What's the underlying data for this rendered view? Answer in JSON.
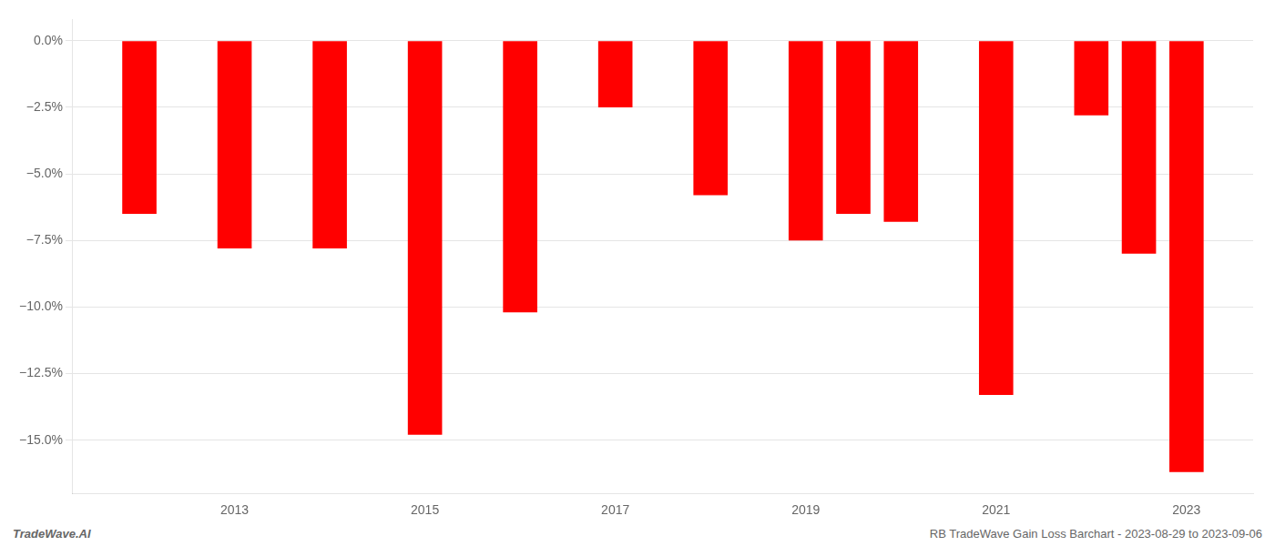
{
  "chart_data": {
    "type": "bar",
    "x": [
      2012,
      2013,
      2014,
      2015,
      2016,
      2017,
      2018,
      2019,
      2019.5,
      2020,
      2021,
      2022,
      2022.5,
      2023
    ],
    "values": [
      -6.5,
      -7.8,
      -7.8,
      -14.8,
      -10.2,
      -2.5,
      -5.8,
      -7.5,
      -6.5,
      -6.8,
      -13.3,
      -2.8,
      -8.0,
      -16.2
    ],
    "color": "#ff0000",
    "xlim": [
      2011.3,
      2023.7
    ],
    "xticks": [
      2013,
      2015,
      2017,
      2019,
      2021,
      2023
    ],
    "ylim": [
      -17.0,
      0.8
    ],
    "yticks": [
      {
        "value": 0.0,
        "label": "0.0%"
      },
      {
        "value": -2.5,
        "label": "−2.5%"
      },
      {
        "value": -5.0,
        "label": "−5.0%"
      },
      {
        "value": -7.5,
        "label": "−7.5%"
      },
      {
        "value": -10.0,
        "label": "−10.0%"
      },
      {
        "value": -12.5,
        "label": "−12.5%"
      },
      {
        "value": -15.0,
        "label": "−15.0%"
      }
    ],
    "grid": true,
    "annotations": [
      "TradeWave.AI",
      "RB TradeWave Gain Loss Barchart - 2023-08-29 to 2023-09-06"
    ]
  }
}
